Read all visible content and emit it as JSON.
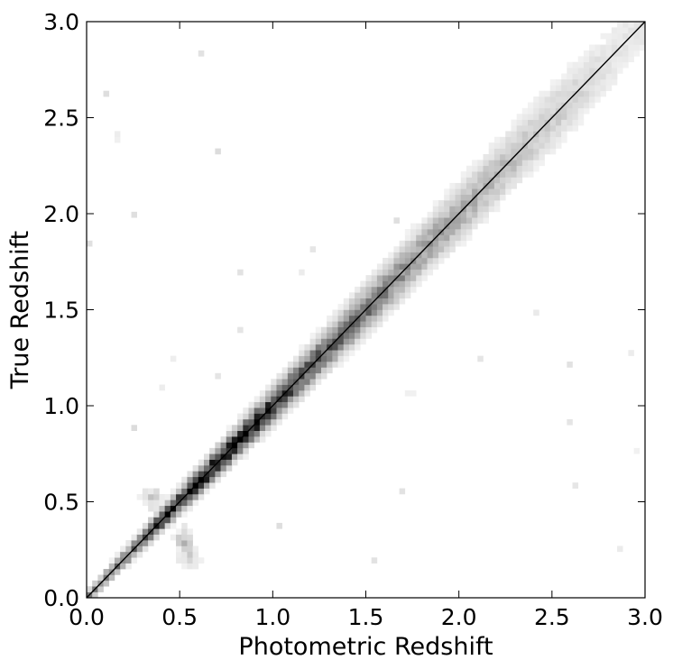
{
  "chart_data": {
    "type": "heatmap",
    "title": "",
    "xlabel": "Photometric Redshift",
    "ylabel": "True Redshift",
    "xlim": [
      0.0,
      3.0
    ],
    "ylim": [
      0.0,
      3.0
    ],
    "x_ticks": [
      "0.0",
      "0.5",
      "1.0",
      "1.5",
      "2.0",
      "2.5",
      "3.0"
    ],
    "y_ticks": [
      "0.0",
      "0.5",
      "1.0",
      "1.5",
      "2.0",
      "2.5",
      "3.0"
    ],
    "grid": false,
    "legend": "none",
    "colormap": [
      "#ffffff",
      "#000000"
    ],
    "reference_line": {
      "x": [
        0.0,
        3.0
      ],
      "y": [
        0.0,
        3.0
      ],
      "color": "#000000"
    },
    "density": {
      "bin_size": 0.03,
      "description_points": [
        {
          "x": 0.05,
          "y": 0.05,
          "intensity": 0.45
        },
        {
          "x": 0.25,
          "y": 0.25,
          "intensity": 0.6
        },
        {
          "x": 0.45,
          "y": 0.43,
          "intensity": 0.85
        },
        {
          "x": 0.62,
          "y": 0.63,
          "intensity": 0.95
        },
        {
          "x": 0.8,
          "y": 0.8,
          "intensity": 0.9
        },
        {
          "x": 0.95,
          "y": 0.96,
          "intensity": 0.85
        },
        {
          "x": 1.2,
          "y": 1.22,
          "intensity": 0.65
        },
        {
          "x": 1.45,
          "y": 1.45,
          "intensity": 0.6
        },
        {
          "x": 1.75,
          "y": 1.78,
          "intensity": 0.4
        },
        {
          "x": 2.1,
          "y": 2.12,
          "intensity": 0.3
        },
        {
          "x": 2.5,
          "y": 2.52,
          "intensity": 0.2
        },
        {
          "x": 2.85,
          "y": 2.88,
          "intensity": 0.1
        }
      ],
      "features": [
        {
          "x": 0.35,
          "y": 0.52,
          "intensity": 0.35
        },
        {
          "x": 0.52,
          "y": 0.3,
          "intensity": 0.35
        },
        {
          "x": 0.55,
          "y": 0.2,
          "intensity": 0.3
        },
        {
          "x": 0.18,
          "y": 2.42,
          "intensity": 0.1
        },
        {
          "x": 2.95,
          "y": 0.75,
          "intensity": 0.08
        },
        {
          "x": 2.85,
          "y": 0.25,
          "intensity": 0.08
        },
        {
          "x": 1.75,
          "y": 1.05,
          "intensity": 0.08
        }
      ]
    }
  }
}
